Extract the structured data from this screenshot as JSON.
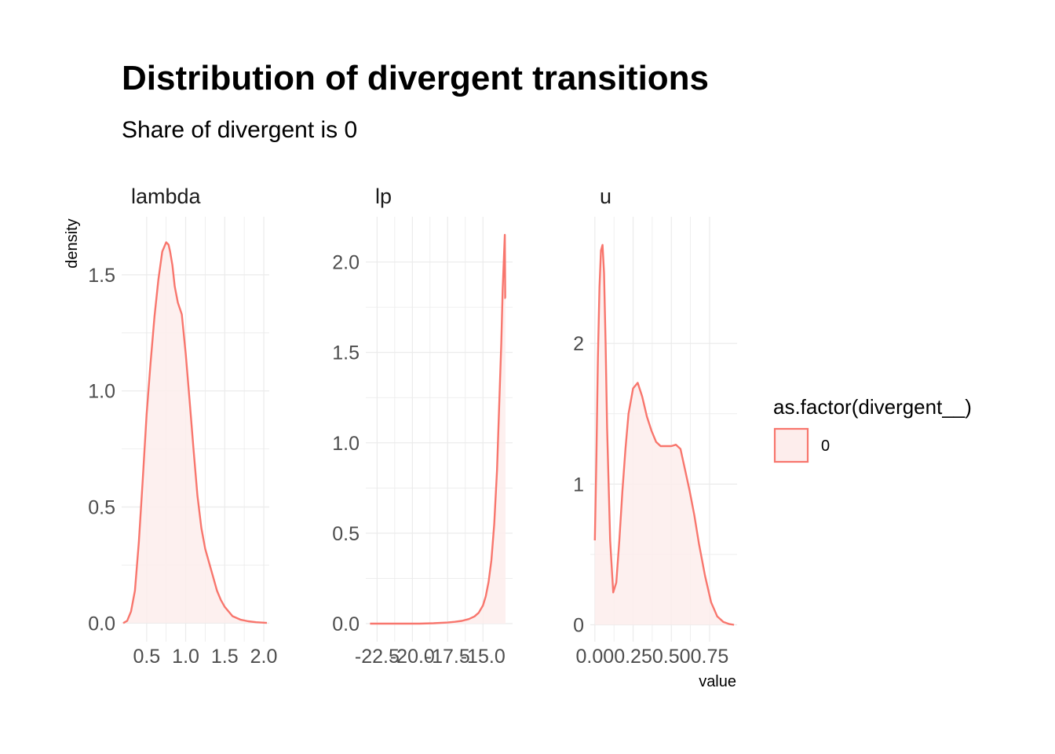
{
  "title": "Distribution of divergent transitions",
  "subtitle": "Share of divergent is  0",
  "chart_data": {
    "type": "area",
    "description_type": "density",
    "xlabel": "value",
    "ylabel": "density",
    "grid": true,
    "legend_position": "right",
    "legend": {
      "title": "as.factor(divergent__)",
      "entries": [
        {
          "label": "0",
          "color": "#F8766D"
        }
      ]
    },
    "colors": {
      "line": "#F8766D",
      "fill": "#FDEDEC",
      "grid": "#EBEBEB",
      "tick_text": "#4D4D4D"
    },
    "facets": [
      {
        "label": "lambda",
        "xlim": [
          0.18,
          2.07
        ],
        "ylim": [
          -0.08,
          1.75
        ],
        "xticks": [
          0.5,
          1.0,
          1.5,
          2.0
        ],
        "xtick_labels": [
          "0.5",
          "1.0",
          "1.5",
          "2.0"
        ],
        "yticks": [
          0.0,
          0.5,
          1.0,
          1.5
        ],
        "ytick_labels": [
          "0.0",
          "0.5",
          "1.0",
          "1.5"
        ],
        "series": [
          {
            "name": "0",
            "x": [
              0.2,
              0.25,
              0.3,
              0.35,
              0.4,
              0.45,
              0.5,
              0.55,
              0.6,
              0.65,
              0.7,
              0.75,
              0.78,
              0.8,
              0.83,
              0.86,
              0.9,
              0.95,
              1.0,
              1.05,
              1.1,
              1.15,
              1.2,
              1.25,
              1.3,
              1.35,
              1.4,
              1.45,
              1.5,
              1.55,
              1.6,
              1.7,
              1.8,
              1.9,
              2.0,
              2.04
            ],
            "y": [
              0.0,
              0.01,
              0.05,
              0.14,
              0.35,
              0.62,
              0.9,
              1.12,
              1.32,
              1.48,
              1.6,
              1.64,
              1.63,
              1.6,
              1.54,
              1.45,
              1.38,
              1.33,
              1.16,
              0.96,
              0.75,
              0.55,
              0.41,
              0.32,
              0.26,
              0.2,
              0.14,
              0.1,
              0.07,
              0.05,
              0.03,
              0.015,
              0.008,
              0.004,
              0.002,
              0.001
            ]
          }
        ]
      },
      {
        "label": "lp",
        "xlim": [
          -23.3,
          -12.9
        ],
        "ylim": [
          -0.1,
          2.25
        ],
        "xticks": [
          -22.5,
          -20.0,
          -17.5,
          -15.0
        ],
        "xtick_labels": [
          "-22.5",
          "-20.0",
          "-17.5",
          "-15.0"
        ],
        "yticks": [
          0.0,
          0.5,
          1.0,
          1.5,
          2.0
        ],
        "ytick_labels": [
          "0.0",
          "0.5",
          "1.0",
          "1.5",
          "2.0"
        ],
        "series": [
          {
            "name": "0",
            "x": [
              -23.0,
              -21.0,
              -19.5,
              -18.5,
              -17.5,
              -17.0,
              -16.5,
              -16.0,
              -15.6,
              -15.3,
              -15.0,
              -14.8,
              -14.6,
              -14.4,
              -14.2,
              -14.0,
              -13.85,
              -13.7,
              -13.6,
              -13.5,
              -13.45,
              -13.42,
              -13.4
            ],
            "y": [
              0.0,
              0.0,
              0.0,
              0.002,
              0.006,
              0.01,
              0.015,
              0.025,
              0.04,
              0.06,
              0.1,
              0.15,
              0.23,
              0.35,
              0.55,
              0.85,
              1.2,
              1.55,
              1.85,
              2.05,
              2.15,
              1.8,
              1.8
            ]
          }
        ]
      },
      {
        "label": "u",
        "xlim": [
          -0.03,
          0.93
        ],
        "ylim": [
          -0.12,
          2.9
        ],
        "xticks": [
          0.0,
          0.25,
          0.5,
          0.75
        ],
        "xtick_labels": [
          "0.00",
          "0.25",
          "0.50",
          "0.75"
        ],
        "yticks": [
          0,
          1,
          2
        ],
        "ytick_labels": [
          "0",
          "1",
          "2"
        ],
        "series": [
          {
            "name": "0",
            "x": [
              0.0,
              0.01,
              0.02,
              0.03,
              0.04,
              0.05,
              0.06,
              0.07,
              0.08,
              0.1,
              0.12,
              0.14,
              0.16,
              0.18,
              0.2,
              0.22,
              0.25,
              0.28,
              0.31,
              0.34,
              0.37,
              0.4,
              0.43,
              0.46,
              0.5,
              0.53,
              0.56,
              0.59,
              0.62,
              0.65,
              0.68,
              0.72,
              0.76,
              0.8,
              0.84,
              0.88,
              0.91
            ],
            "y": [
              0.6,
              1.2,
              1.9,
              2.4,
              2.66,
              2.7,
              2.5,
              2.0,
              1.4,
              0.6,
              0.23,
              0.3,
              0.6,
              0.95,
              1.25,
              1.5,
              1.68,
              1.72,
              1.62,
              1.48,
              1.38,
              1.3,
              1.27,
              1.27,
              1.27,
              1.28,
              1.25,
              1.1,
              0.95,
              0.78,
              0.58,
              0.35,
              0.16,
              0.06,
              0.02,
              0.005,
              0.0
            ]
          }
        ]
      }
    ]
  }
}
